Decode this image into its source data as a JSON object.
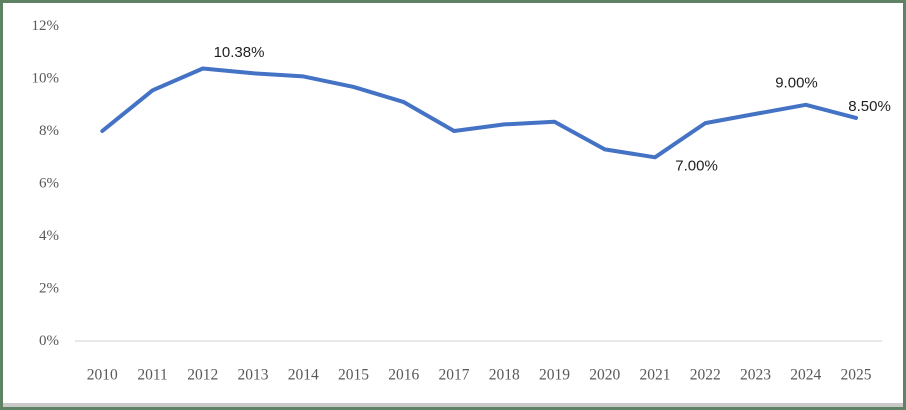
{
  "frame": {
    "border_color": "#5f8264",
    "background_color": "#ffffff"
  },
  "chart_data": {
    "type": "line",
    "title": "",
    "xlabel": "",
    "ylabel": "",
    "x": [
      2010,
      2011,
      2012,
      2013,
      2014,
      2015,
      2016,
      2017,
      2018,
      2019,
      2020,
      2021,
      2022,
      2023,
      2024,
      2025
    ],
    "series": [
      {
        "name": "rate",
        "color": "#4472c4",
        "values": [
          8.0,
          9.55,
          10.38,
          10.2,
          10.08,
          9.68,
          9.1,
          8.0,
          8.25,
          8.35,
          7.3,
          7.0,
          8.3,
          8.65,
          9.0,
          8.5
        ]
      }
    ],
    "ylim": [
      0,
      12
    ],
    "ytick_step": 2,
    "ytick_labels": [
      "0%",
      "2%",
      "4%",
      "6%",
      "8%",
      "10%",
      "12%"
    ],
    "xtick_labels": [
      "2010",
      "2011",
      "2012",
      "2013",
      "2014",
      "2015",
      "2016",
      "2017",
      "2018",
      "2019",
      "2020",
      "2021",
      "2022",
      "2023",
      "2024",
      "2025"
    ],
    "grid": "off",
    "legend": "none",
    "baseline_axis_color": "#d9d9d9",
    "tick_label_color": "#595959",
    "data_label_color": "#1f1f1f",
    "data_labels": [
      {
        "x": 2012,
        "text": "10.38%",
        "dx": 36.2,
        "dy": -16.0
      },
      {
        "x": 2021,
        "text": "7.00%",
        "dx": 41.5,
        "dy": 8.8
      },
      {
        "x": 2024,
        "text": "9.00%",
        "dx": -9.3,
        "dy": -21.8
      },
      {
        "x": 2025,
        "text": "8.50%",
        "dx": 13.5,
        "dy": -11.4
      }
    ]
  }
}
